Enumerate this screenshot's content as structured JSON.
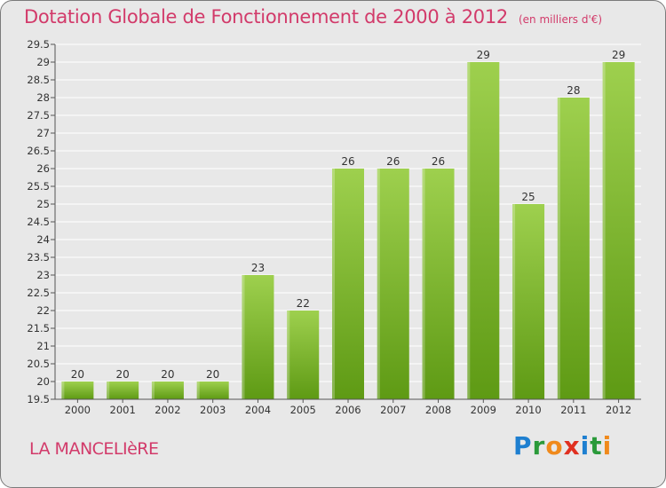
{
  "header": {
    "title": "Dotation Globale de Fonctionnement de 2000 à 2012",
    "subtitle": "(en milliers d'€)"
  },
  "footer": {
    "place": "LA MANCELIèRE",
    "brand": "Proxiti",
    "brand_letters": [
      {
        "ch": "P",
        "color": "#1e7fd0"
      },
      {
        "ch": "r",
        "color": "#2a9a3a"
      },
      {
        "ch": "o",
        "color": "#f08a1c"
      },
      {
        "ch": "x",
        "color": "#e03020"
      },
      {
        "ch": "i",
        "color": "#1e7fd0"
      },
      {
        "ch": "t",
        "color": "#2a9a3a"
      },
      {
        "ch": "i",
        "color": "#f08a1c"
      }
    ]
  },
  "chart_data": {
    "type": "bar",
    "title": "Dotation Globale de Fonctionnement de 2000 à 2012",
    "subtitle": "(en milliers d'€)",
    "categories": [
      "2000",
      "2001",
      "2002",
      "2003",
      "2004",
      "2005",
      "2006",
      "2007",
      "2008",
      "2009",
      "2010",
      "2011",
      "2012"
    ],
    "values": [
      20,
      20,
      20,
      20,
      23,
      22,
      26,
      26,
      26,
      29,
      25,
      28,
      29
    ],
    "data_labels": [
      "20",
      "20",
      "20",
      "20",
      "23",
      "22",
      "26",
      "26",
      "26",
      "29",
      "25",
      "28",
      "29"
    ],
    "ylim": [
      19.5,
      29.5
    ],
    "yticks": [
      "19.5",
      "20",
      "20.5",
      "21",
      "21.5",
      "22",
      "22.5",
      "23",
      "23.5",
      "24",
      "24.5",
      "25",
      "25.5",
      "26",
      "26.5",
      "27",
      "27.5",
      "28",
      "28.5",
      "29",
      "29.5"
    ],
    "grid": true,
    "bar_color_top": "#9ed04e",
    "bar_color_bottom": "#5e9a14",
    "grid_color": "#ffffff",
    "axis_color": "#555555"
  }
}
